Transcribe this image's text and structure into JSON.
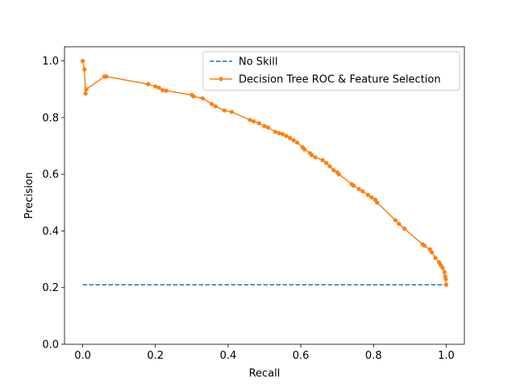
{
  "chart_data": {
    "type": "line",
    "title": "",
    "xlabel": "Recall",
    "ylabel": "Precision",
    "xlim": [
      -0.05,
      1.05
    ],
    "ylim": [
      0.0,
      1.05
    ],
    "xticks": [
      0.0,
      0.2,
      0.4,
      0.6,
      0.8,
      1.0
    ],
    "yticks": [
      0.0,
      0.2,
      0.4,
      0.6,
      0.8,
      1.0
    ],
    "xtick_labels": [
      "0.0",
      "0.2",
      "0.4",
      "0.6",
      "0.8",
      "1.0"
    ],
    "ytick_labels": [
      "0.0",
      "0.2",
      "0.4",
      "0.6",
      "0.8",
      "1.0"
    ],
    "grid": false,
    "legend_position": "upper-right",
    "series": [
      {
        "name": "No Skill",
        "color": "#1f77b4",
        "style": "dashed",
        "marker": "none",
        "x": [
          0.0,
          1.0
        ],
        "y": [
          0.21,
          0.21
        ]
      },
      {
        "name": "Decision Tree ROC & Feature Selection",
        "color": "#ff7f0e",
        "style": "solid",
        "marker": "dot",
        "x": [
          0.0,
          0.005,
          0.008,
          0.01,
          0.06,
          0.065,
          0.18,
          0.2,
          0.21,
          0.22,
          0.23,
          0.3,
          0.305,
          0.33,
          0.355,
          0.365,
          0.39,
          0.41,
          0.46,
          0.47,
          0.485,
          0.5,
          0.51,
          0.53,
          0.54,
          0.55,
          0.56,
          0.57,
          0.58,
          0.59,
          0.605,
          0.61,
          0.625,
          0.63,
          0.64,
          0.66,
          0.67,
          0.68,
          0.69,
          0.7,
          0.705,
          0.74,
          0.745,
          0.76,
          0.77,
          0.785,
          0.795,
          0.805,
          0.81,
          0.86,
          0.87,
          0.885,
          0.935,
          0.94,
          0.955,
          0.96,
          0.97,
          0.98,
          0.985,
          0.99,
          0.995,
          0.997,
          0.999,
          1.0
        ],
        "y": [
          1.0,
          0.97,
          0.885,
          0.9,
          0.945,
          0.945,
          0.918,
          0.91,
          0.905,
          0.897,
          0.895,
          0.88,
          0.875,
          0.868,
          0.848,
          0.84,
          0.825,
          0.82,
          0.792,
          0.787,
          0.78,
          0.77,
          0.765,
          0.75,
          0.745,
          0.742,
          0.735,
          0.728,
          0.72,
          0.712,
          0.695,
          0.688,
          0.675,
          0.668,
          0.66,
          0.65,
          0.64,
          0.628,
          0.615,
          0.607,
          0.6,
          0.565,
          0.56,
          0.548,
          0.54,
          0.527,
          0.518,
          0.51,
          0.5,
          0.438,
          0.425,
          0.408,
          0.353,
          0.348,
          0.335,
          0.325,
          0.305,
          0.29,
          0.28,
          0.27,
          0.255,
          0.24,
          0.23,
          0.21
        ]
      }
    ]
  }
}
